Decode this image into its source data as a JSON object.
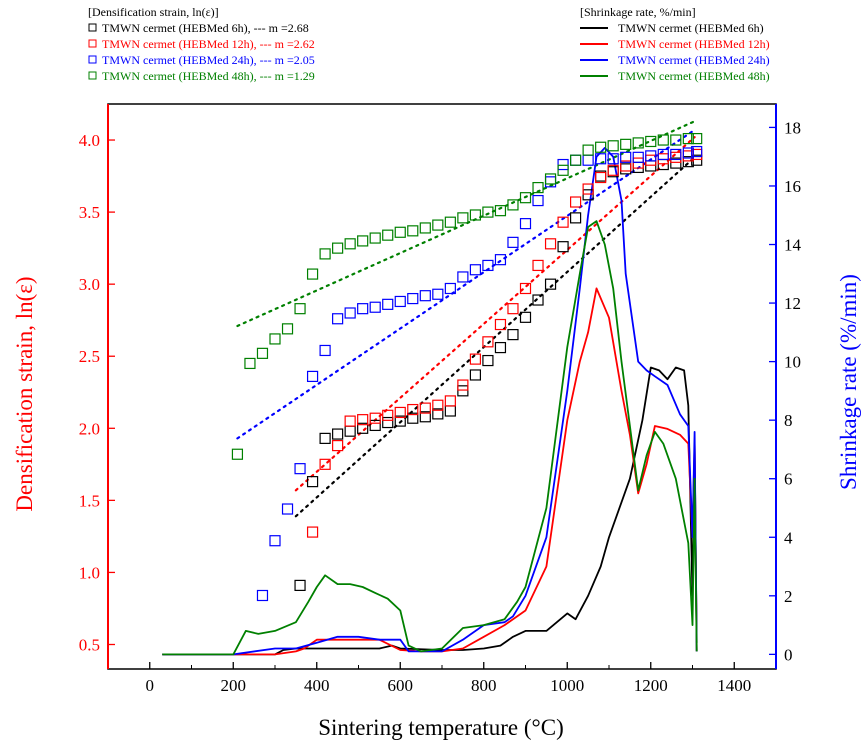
{
  "chart_data": {
    "type": "scatter",
    "xlabel": "Sintering temperature (°C)",
    "ylabel_left": "Densification strain, ln(ε)",
    "ylabel_right": "Shrinkage rate (%/min)",
    "xlim": [
      -100,
      1500
    ],
    "ylim_left": [
      0.33,
      4.25
    ],
    "ylim_right": [
      -0.5,
      18.8
    ],
    "x_ticks": [
      "0",
      "200",
      "400",
      "600",
      "800",
      "1000",
      "1200",
      "1400"
    ],
    "y_left_ticks": [
      "0.5",
      "1.0",
      "1.5",
      "2.0",
      "2.5",
      "3.0",
      "3.5",
      "4.0"
    ],
    "y_right_ticks": [
      "0",
      "2",
      "4",
      "6",
      "8",
      "10",
      "12",
      "14",
      "16",
      "18"
    ],
    "colors": {
      "h6": "#000000",
      "h12": "#ff0000",
      "h24": "#0000ff",
      "h48": "#008000",
      "left_axis": "#ff0000",
      "right_axis": "#0000ff"
    },
    "legend_left": {
      "title": "[Densification strain, ln(ε)]",
      "entries": [
        {
          "key": "h6",
          "label": "TMWN cermet (HEBMed 6h), --- m =2.68"
        },
        {
          "key": "h12",
          "label": "TMWN cermet (HEBMed 12h), --- m =2.62"
        },
        {
          "key": "h24",
          "label": "TMWN cermet (HEBMed 24h), --- m =2.05"
        },
        {
          "key": "h48",
          "label": "TMWN cermet (HEBMed 48h), --- m =1.29"
        }
      ]
    },
    "legend_right": {
      "title": "[Shrinkage rate, %/min]",
      "entries": [
        {
          "key": "h6",
          "label": "TMWN cermet (HEBMed 6h)"
        },
        {
          "key": "h12",
          "label": "TMWN cermet (HEBMed 12h)"
        },
        {
          "key": "h24",
          "label": "TMWN cermet (HEBMed 24h)"
        },
        {
          "key": "h48",
          "label": "TMWN cermet (HEBMed 48h)"
        }
      ]
    },
    "scatter_series": [
      {
        "key": "h6",
        "x": [
          360,
          390,
          420,
          450,
          480,
          510,
          540,
          570,
          600,
          630,
          660,
          690,
          720,
          750,
          780,
          810,
          840,
          870,
          900,
          930,
          960,
          990,
          1020,
          1050,
          1080,
          1110,
          1140,
          1170,
          1200,
          1230,
          1260,
          1290,
          1310
        ],
        "y": [
          0.91,
          1.63,
          1.93,
          1.96,
          1.98,
          2.0,
          2.02,
          2.04,
          2.05,
          2.07,
          2.08,
          2.1,
          2.12,
          2.26,
          2.37,
          2.47,
          2.56,
          2.65,
          2.77,
          2.89,
          3.0,
          3.26,
          3.46,
          3.62,
          3.75,
          3.78,
          3.8,
          3.81,
          3.82,
          3.83,
          3.84,
          3.85,
          3.86
        ]
      },
      {
        "key": "h12",
        "x": [
          390,
          420,
          450,
          480,
          510,
          540,
          570,
          600,
          630,
          660,
          690,
          720,
          750,
          780,
          810,
          840,
          870,
          900,
          930,
          960,
          990,
          1020,
          1050,
          1080,
          1110,
          1140,
          1170,
          1200,
          1230,
          1260,
          1290,
          1310
        ],
        "y": [
          1.28,
          1.75,
          1.88,
          2.05,
          2.06,
          2.07,
          2.09,
          2.11,
          2.13,
          2.14,
          2.16,
          2.19,
          2.3,
          2.48,
          2.6,
          2.72,
          2.83,
          2.97,
          3.13,
          3.28,
          3.43,
          3.57,
          3.66,
          3.74,
          3.79,
          3.82,
          3.84,
          3.86,
          3.87,
          3.88,
          3.89,
          3.9
        ]
      },
      {
        "key": "h24",
        "x": [
          270,
          300,
          330,
          360,
          390,
          420,
          450,
          480,
          510,
          540,
          570,
          600,
          630,
          660,
          690,
          720,
          750,
          780,
          810,
          840,
          870,
          900,
          930,
          960,
          990,
          1020,
          1050,
          1080,
          1110,
          1140,
          1170,
          1200,
          1230,
          1260,
          1290,
          1310
        ],
        "y": [
          0.84,
          1.22,
          1.44,
          1.72,
          2.36,
          2.54,
          2.76,
          2.8,
          2.83,
          2.84,
          2.86,
          2.88,
          2.9,
          2.92,
          2.93,
          2.97,
          3.05,
          3.1,
          3.13,
          3.17,
          3.29,
          3.42,
          3.58,
          3.71,
          3.83,
          3.86,
          3.86,
          3.87,
          3.87,
          3.88,
          3.88,
          3.89,
          3.9,
          3.9,
          3.91,
          3.92
        ]
      },
      {
        "key": "h48",
        "x": [
          210,
          240,
          270,
          300,
          330,
          360,
          390,
          420,
          450,
          480,
          510,
          540,
          570,
          600,
          630,
          660,
          690,
          720,
          750,
          780,
          810,
          840,
          870,
          900,
          930,
          960,
          990,
          1020,
          1050,
          1080,
          1110,
          1140,
          1170,
          1200,
          1230,
          1260,
          1290,
          1310
        ],
        "y": [
          1.82,
          2.45,
          2.52,
          2.62,
          2.69,
          2.83,
          3.07,
          3.21,
          3.25,
          3.28,
          3.3,
          3.32,
          3.34,
          3.36,
          3.37,
          3.39,
          3.41,
          3.43,
          3.46,
          3.48,
          3.5,
          3.51,
          3.55,
          3.6,
          3.67,
          3.73,
          3.79,
          3.86,
          3.93,
          3.95,
          3.96,
          3.97,
          3.98,
          3.99,
          4.0,
          4.0,
          4.01,
          4.01
        ]
      }
    ],
    "fit_lines": [
      {
        "key": "h6",
        "x": [
          350,
          1305
        ],
        "y": [
          1.39,
          3.88
        ]
      },
      {
        "key": "h12",
        "x": [
          350,
          1305
        ],
        "y": [
          1.57,
          4.02
        ]
      },
      {
        "key": "h24",
        "x": [
          210,
          1305
        ],
        "y": [
          1.93,
          4.07
        ]
      },
      {
        "key": "h48",
        "x": [
          210,
          1305
        ],
        "y": [
          2.71,
          4.13
        ]
      }
    ],
    "rate_series": [
      {
        "key": "h6",
        "x": [
          30,
          300,
          320,
          350,
          400,
          450,
          500,
          550,
          580,
          600,
          700,
          750,
          800,
          840,
          870,
          900,
          950,
          1000,
          1020,
          1050,
          1080,
          1100,
          1150,
          1180,
          1200,
          1220,
          1240,
          1260,
          1280,
          1290,
          1300,
          1305,
          1310
        ],
        "y": [
          0,
          0,
          0.15,
          0.2,
          0.2,
          0.2,
          0.2,
          0.2,
          0.3,
          0.2,
          0.15,
          0.15,
          0.2,
          0.3,
          0.6,
          0.8,
          0.8,
          1.4,
          1.2,
          2.0,
          3.0,
          4.0,
          6.0,
          8.0,
          9.8,
          9.7,
          9.4,
          9.8,
          9.7,
          8.5,
          2.0,
          7.2,
          0.4
        ]
      },
      {
        "key": "h12",
        "x": [
          30,
          300,
          350,
          370,
          400,
          450,
          500,
          550,
          600,
          650,
          700,
          750,
          800,
          850,
          900,
          950,
          1000,
          1030,
          1050,
          1070,
          1100,
          1130,
          1150,
          1170,
          1190,
          1210,
          1240,
          1270,
          1290,
          1300,
          1305,
          1310
        ],
        "y": [
          0,
          0,
          0.1,
          0.2,
          0.5,
          0.5,
          0.5,
          0.5,
          0.15,
          0.1,
          0.1,
          0.2,
          0.6,
          1.0,
          1.5,
          3.0,
          8.0,
          10.0,
          11.0,
          12.5,
          11.5,
          9.0,
          7.5,
          5.5,
          6.5,
          7.8,
          7.7,
          7.5,
          7.2,
          4.0,
          7.2,
          0.1
        ]
      },
      {
        "key": "h24",
        "x": [
          30,
          200,
          300,
          350,
          400,
          450,
          500,
          550,
          600,
          620,
          700,
          750,
          800,
          850,
          870,
          900,
          950,
          1000,
          1030,
          1050,
          1070,
          1090,
          1110,
          1130,
          1140,
          1170,
          1190,
          1210,
          1240,
          1270,
          1290,
          1300,
          1305,
          1310
        ],
        "y": [
          0,
          0,
          0.2,
          0.2,
          0.4,
          0.6,
          0.6,
          0.5,
          0.5,
          0.1,
          0.1,
          0.5,
          1.0,
          1.1,
          1.3,
          2.0,
          4.0,
          9.0,
          12.5,
          15.0,
          17.0,
          17.3,
          17.0,
          15.5,
          13.0,
          10.0,
          9.7,
          9.5,
          9.2,
          8.2,
          7.8,
          4.0,
          7.6,
          0.1
        ]
      },
      {
        "key": "h48",
        "x": [
          30,
          200,
          230,
          260,
          300,
          350,
          380,
          400,
          420,
          450,
          480,
          510,
          540,
          570,
          600,
          620,
          650,
          700,
          750,
          800,
          850,
          880,
          900,
          950,
          1000,
          1030,
          1050,
          1070,
          1090,
          1110,
          1130,
          1150,
          1170,
          1190,
          1210,
          1230,
          1260,
          1290,
          1300,
          1305,
          1310
        ],
        "y": [
          0,
          0,
          0.8,
          0.7,
          0.8,
          1.1,
          1.8,
          2.3,
          2.7,
          2.4,
          2.4,
          2.3,
          2.1,
          1.9,
          1.5,
          0.3,
          0.1,
          0.2,
          0.9,
          1.0,
          1.2,
          1.8,
          2.3,
          5.0,
          10.5,
          13.0,
          14.6,
          14.8,
          14.0,
          12.5,
          10.0,
          7.8,
          5.6,
          6.8,
          7.6,
          7.2,
          6.0,
          3.8,
          1.0,
          6.0,
          0.1
        ]
      }
    ]
  }
}
